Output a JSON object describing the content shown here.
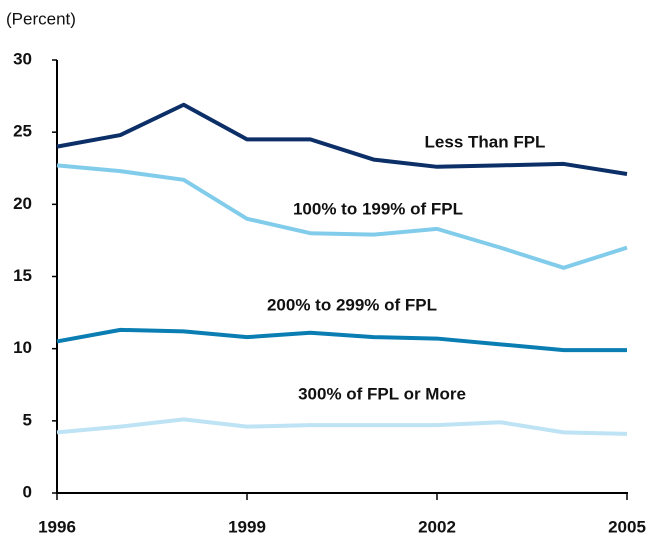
{
  "chart_data": {
    "type": "line",
    "y_label": "(Percent)",
    "x": [
      1996,
      1997,
      1998,
      1999,
      2000,
      2001,
      2002,
      2003,
      2004,
      2005
    ],
    "xlim": [
      1996,
      2005
    ],
    "xticks": [
      1996,
      1999,
      2002,
      2005
    ],
    "ylim": [
      0,
      30
    ],
    "yticks": [
      0,
      5,
      10,
      15,
      20,
      25,
      30
    ],
    "series": [
      {
        "name": "Less Than FPL",
        "color": "#0c2f68",
        "values": [
          24.0,
          24.8,
          26.9,
          24.5,
          24.5,
          23.1,
          22.6,
          22.7,
          22.8,
          22.1
        ]
      },
      {
        "name": "100% to 199% of FPL",
        "color": "#82cceb",
        "values": [
          22.7,
          22.3,
          21.7,
          19.0,
          18.0,
          17.9,
          18.3,
          17.0,
          15.6,
          17.0
        ]
      },
      {
        "name": "200% to 299% of FPL",
        "color": "#0a7db3",
        "values": [
          10.5,
          11.3,
          11.2,
          10.8,
          11.1,
          10.8,
          10.7,
          10.3,
          9.9,
          9.9
        ]
      },
      {
        "name": "300% of FPL or More",
        "color": "#bde3f4",
        "values": [
          4.2,
          4.6,
          5.1,
          4.6,
          4.7,
          4.7,
          4.7,
          4.9,
          4.2,
          4.1
        ]
      }
    ]
  }
}
